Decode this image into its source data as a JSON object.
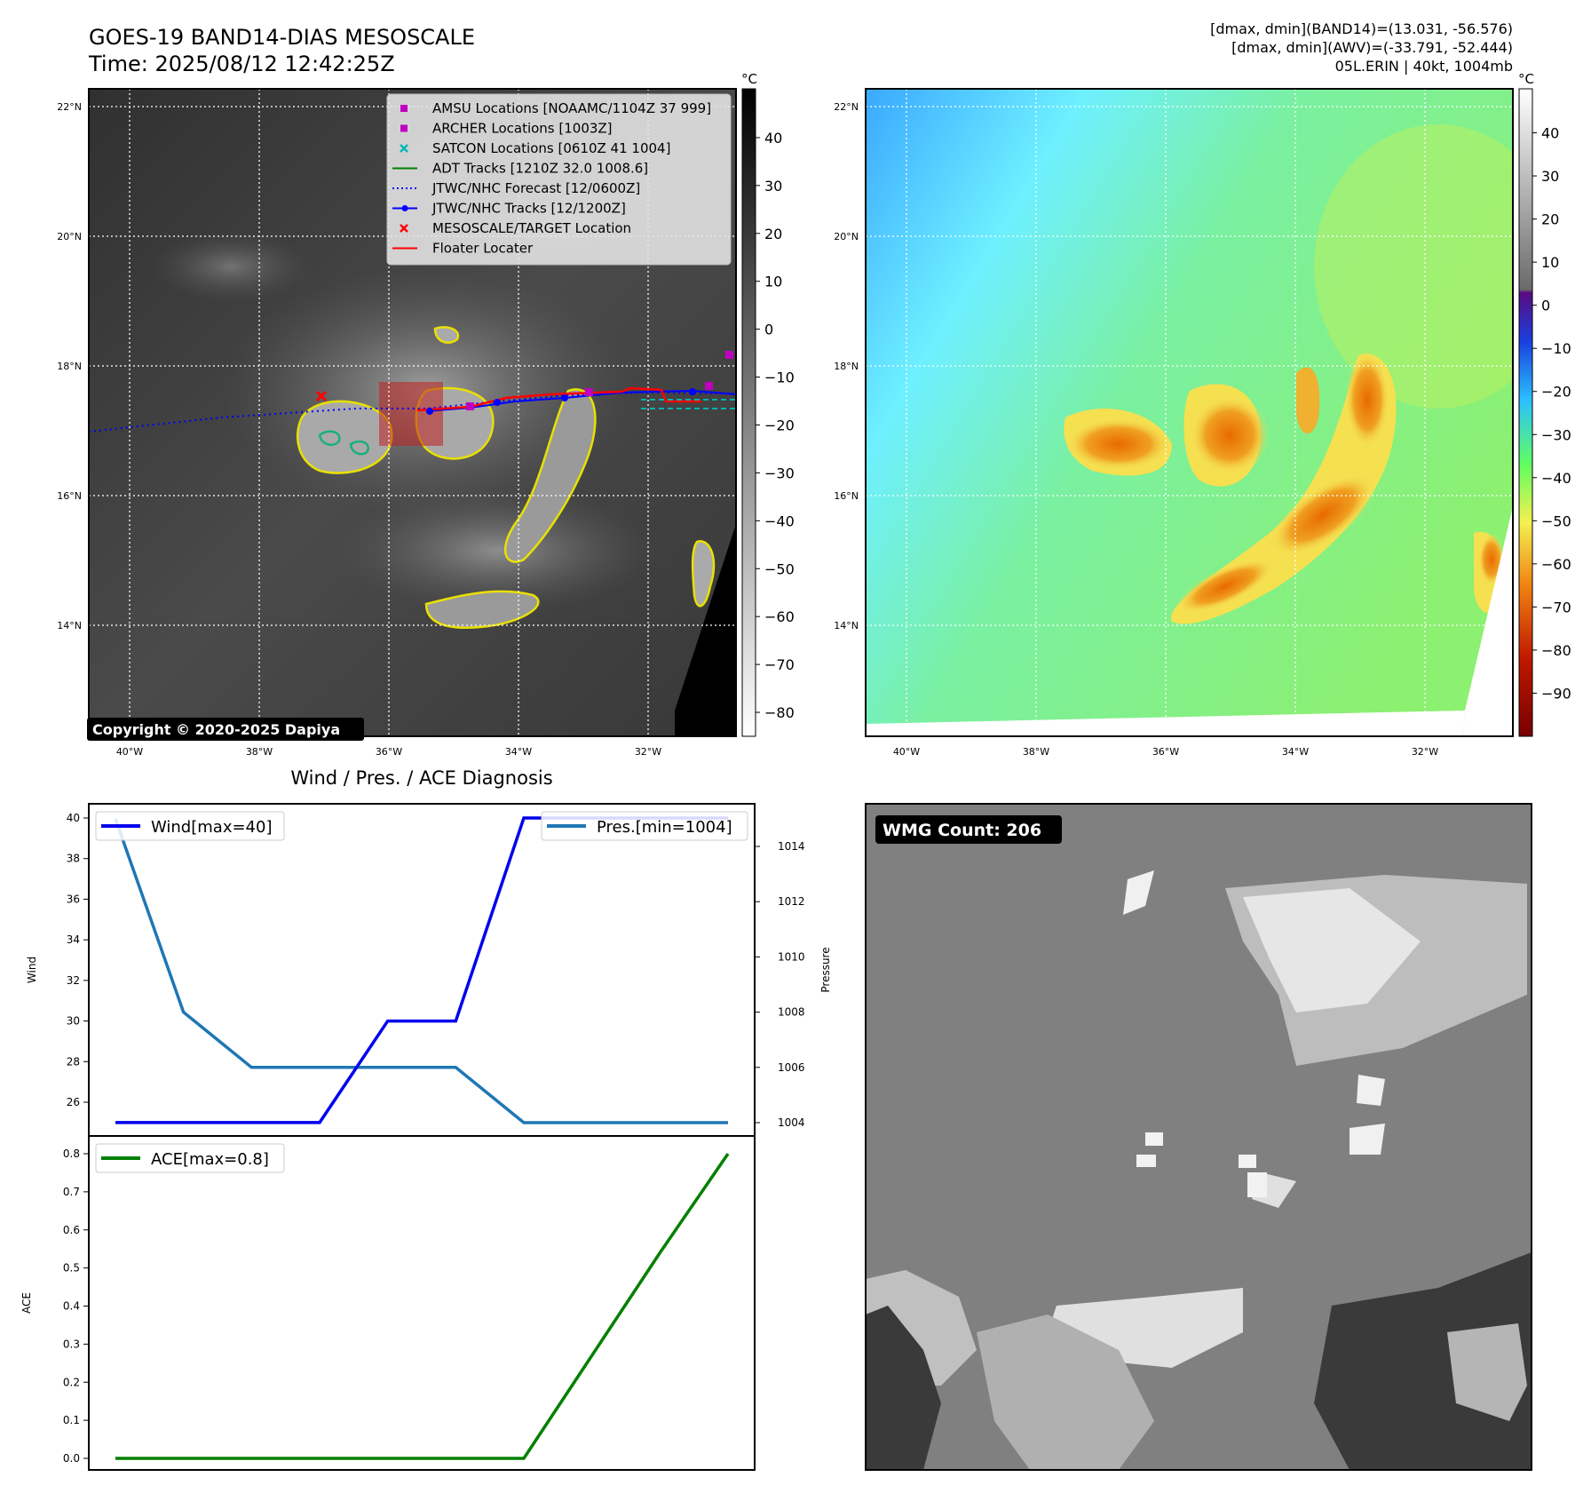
{
  "header": {
    "title": "GOES-19 BAND14-DIAS MESOSCALE",
    "time": "Time: 2025/08/12 12:42:25Z",
    "stats_band14": "[dmax, dmin](BAND14)=(13.031, -56.576)",
    "stats_awv": "[dmax, dmin](AWV)=(-33.791, -52.444)",
    "storm": "05L.ERIN | 40kt, 1004mb"
  },
  "maps": {
    "lat_labels": [
      "22°N",
      "20°N",
      "18°N",
      "16°N",
      "14°N"
    ],
    "lon_labels": [
      "40°W",
      "38°W",
      "36°W",
      "34°W",
      "32°W"
    ],
    "copyright": "Copyright © 2020-2025 Dapiya",
    "legend": [
      {
        "label": "AMSU Locations [NOAAMC/1104Z 37 999]",
        "marker": "square",
        "color": "#c000c0"
      },
      {
        "label": "ARCHER Locations [1003Z]",
        "marker": "square",
        "color": "#c000c0"
      },
      {
        "label": "SATCON Locations [0610Z 41 1004]",
        "marker": "x",
        "color": "#00b8b8"
      },
      {
        "label": "ADT Tracks [1210Z 32.0 1008.6]",
        "marker": "line",
        "color": "#008000"
      },
      {
        "label": "JTWC/NHC Forecast [12/0600Z]",
        "marker": "dotted",
        "color": "#0000ff"
      },
      {
        "label": "JTWC/NHC Tracks [12/1200Z]",
        "marker": "line-dot",
        "color": "#0000ff"
      },
      {
        "label": "MESOSCALE/TARGET Location",
        "marker": "x",
        "color": "#ff0000"
      },
      {
        "label": "Floater Locater",
        "marker": "line",
        "color": "#ff0000"
      }
    ]
  },
  "colorbars": {
    "unit": "°C",
    "gray_ticks": [
      "40",
      "30",
      "20",
      "10",
      "0",
      "−10",
      "−20",
      "−30",
      "−40",
      "−50",
      "−60",
      "−70",
      "−80"
    ],
    "color_ticks": [
      "40",
      "30",
      "20",
      "10",
      "0",
      "−10",
      "−20",
      "−30",
      "−40",
      "−50",
      "−60",
      "−70",
      "−80",
      "−90"
    ]
  },
  "diagnosis": {
    "title": "Wind / Pres. / ACE Diagnosis",
    "wind_ylabel": "Wind",
    "pres_ylabel": "Pressure",
    "ace_ylabel": "ACE",
    "wind_legend": "Wind[max=40]",
    "pres_legend": "Pres.[min=1004]",
    "ace_legend": "ACE[max=0.8]",
    "wind_ticks": [
      "40",
      "38",
      "36",
      "34",
      "32",
      "30",
      "28",
      "26"
    ],
    "pres_ticks": [
      "1014",
      "1012",
      "1010",
      "1008",
      "1006",
      "1004"
    ],
    "ace_ticks": [
      "0.8",
      "0.7",
      "0.6",
      "0.5",
      "0.4",
      "0.3",
      "0.2",
      "0.1",
      "0.0"
    ]
  },
  "wmg": {
    "label": "WMG Count: 206"
  },
  "chart_data": [
    {
      "type": "line",
      "x": [
        0,
        1,
        2,
        3,
        4,
        5,
        6,
        7,
        8,
        9
      ],
      "series": [
        {
          "name": "Wind[max=40]",
          "axis": "left",
          "color": "#0000ee",
          "values": [
            25,
            25,
            25,
            25,
            30,
            30,
            40,
            40,
            40,
            40
          ]
        },
        {
          "name": "Pres.[min=1004]",
          "axis": "right",
          "color": "#1f77b4",
          "values": [
            1015,
            1008,
            1006,
            1006,
            1006,
            1006,
            1004,
            1004,
            1004,
            1004
          ]
        }
      ],
      "ylim_left": [
        25,
        40
      ],
      "ylim_right": [
        1004,
        1015
      ],
      "ylabel": "Wind",
      "ylabel_right": "Pressure"
    },
    {
      "type": "line",
      "x": [
        0,
        1,
        2,
        3,
        4,
        5,
        6,
        7,
        8,
        9
      ],
      "series": [
        {
          "name": "ACE[max=0.8]",
          "color": "#008000",
          "values": [
            0,
            0,
            0,
            0,
            0,
            0,
            0,
            0.27,
            0.54,
            0.8
          ]
        }
      ],
      "ylim": [
        0,
        0.8
      ],
      "ylabel": "ACE"
    }
  ]
}
